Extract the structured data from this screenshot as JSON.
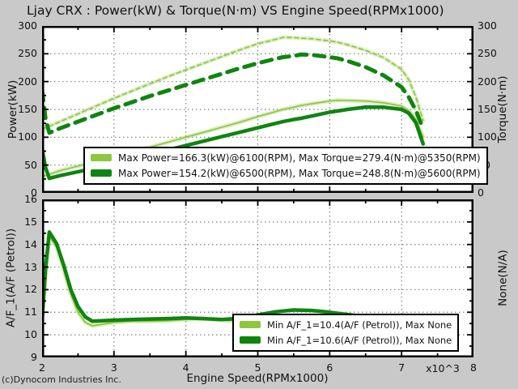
{
  "title": "Ljay CRX : Power(kW) & Torque(N·m) VS Engine Speed(RPMx1000)",
  "footer": "(c)Dynocom Industries Inc.",
  "colors": {
    "figure_bg": "#c9c9c9",
    "plot_bg": "#ffffff",
    "grid": "#7f7f7f",
    "axis": "#000000",
    "run1": "#8dc63f",
    "run2": "#108410"
  },
  "x_axis": {
    "label": "Engine Speed(RPMx1000)",
    "multiplier": "x10^3",
    "ticks": [
      2,
      3,
      4,
      5,
      6,
      7,
      8
    ]
  },
  "top_plot": {
    "y_left_label": "Power(kW)",
    "y_right_label": "Torque(N·m)",
    "legend": [
      {
        "swatch": "run1",
        "label": "Max Power=166.3(kW)@6100(RPM), Max Torque=279.4(N·m)@5350(RPM)"
      },
      {
        "swatch": "run2",
        "label": "Max Power=154.2(kW)@6500(RPM), Max Torque=248.8(N·m)@5600(RPM)"
      }
    ]
  },
  "bottom_plot": {
    "y_left_label": "A/F_1(A/F (Petrol))",
    "y_right_label": "None(N/A)",
    "legend": [
      {
        "swatch": "run1",
        "label": "Min A/F_1=10.4(A/F (Petrol)), Max None"
      },
      {
        "swatch": "run2",
        "label": "Min A/F_1=10.6(A/F (Petrol)), Max None"
      }
    ]
  },
  "chart_data": [
    {
      "type": "line",
      "title": "Power & Torque vs Engine Speed",
      "xlabel": "Engine Speed(RPMx1000)",
      "ylabel_left": "Power(kW)",
      "ylabel_right": "Torque(N·m)",
      "xlim": [
        2,
        8
      ],
      "ylim": [
        0,
        300
      ],
      "grid": true,
      "x_gridlines": [
        3,
        4,
        5,
        6,
        7
      ],
      "y_gridlines": [
        50,
        100,
        150,
        200,
        250
      ],
      "y_ticks_major": [
        0,
        50,
        100,
        150,
        200,
        250,
        300
      ],
      "x_minor_step": 0.5,
      "y_minor_step": 25,
      "y_major_step": 50,
      "legend_position": "lower-left",
      "series": [
        {
          "name": "run1-power-kW",
          "color_key": "run1",
          "line": {
            "width": 1.6,
            "dash": null,
            "halo": true
          },
          "x": [
            2.0,
            2.05,
            2.1,
            2.25,
            2.5,
            2.75,
            3.0,
            3.25,
            3.5,
            3.75,
            4.0,
            4.25,
            4.5,
            4.75,
            5.0,
            5.25,
            5.35,
            5.5,
            5.6,
            5.75,
            6.0,
            6.1,
            6.25,
            6.5,
            6.75,
            7.0,
            7.1,
            7.2,
            7.3
          ],
          "y": [
            30,
            31,
            33,
            40,
            48,
            57,
            66,
            74,
            82,
            91,
            100,
            109,
            118,
            127,
            137,
            146,
            150,
            154,
            157,
            160,
            165,
            166.3,
            166,
            165,
            162,
            156,
            148,
            132,
            100
          ]
        },
        {
          "name": "run1-torque-Nm",
          "color_key": "run1",
          "line": {
            "width": 1.6,
            "dash": [
              5,
              4
            ],
            "halo": true
          },
          "x": [
            2.0,
            2.05,
            2.1,
            2.25,
            2.5,
            2.75,
            3.0,
            3.25,
            3.5,
            3.75,
            4.0,
            4.25,
            4.5,
            4.75,
            5.0,
            5.25,
            5.35,
            5.5,
            5.6,
            5.75,
            6.0,
            6.1,
            6.25,
            6.5,
            6.75,
            7.0,
            7.1,
            7.2,
            7.3
          ],
          "y": [
            115,
            117,
            120,
            128,
            142,
            156,
            170,
            183,
            196,
            209,
            221,
            233,
            245,
            257,
            268,
            276,
            279.4,
            279,
            278,
            277,
            273,
            271,
            266,
            256,
            243,
            222,
            203,
            172,
            130
          ]
        },
        {
          "name": "run2-power-kW",
          "color_key": "run2",
          "line": {
            "width": 4.5,
            "dash": null,
            "halo": false
          },
          "x": [
            2.0,
            2.05,
            2.1,
            2.25,
            2.5,
            2.75,
            3.0,
            3.25,
            3.5,
            3.75,
            4.0,
            4.25,
            4.5,
            4.75,
            5.0,
            5.25,
            5.35,
            5.5,
            5.6,
            5.75,
            6.0,
            6.1,
            6.25,
            6.5,
            6.75,
            7.0,
            7.1,
            7.2,
            7.3
          ],
          "y": [
            80,
            45,
            26,
            31,
            38,
            45,
            53,
            61,
            69,
            77,
            85,
            93,
            101,
            109,
            117,
            125,
            128,
            132,
            134,
            138,
            145,
            147,
            150,
            154.2,
            154,
            150,
            143,
            126,
            88
          ]
        },
        {
          "name": "run2-torque-Nm",
          "color_key": "run2",
          "line": {
            "width": 5,
            "dash": [
              13,
              9
            ],
            "halo": false
          },
          "x": [
            2.0,
            2.05,
            2.1,
            2.25,
            2.5,
            2.75,
            3.0,
            3.25,
            3.5,
            3.75,
            4.0,
            4.25,
            4.5,
            4.75,
            5.0,
            5.25,
            5.35,
            5.5,
            5.6,
            5.75,
            6.0,
            6.1,
            6.25,
            6.5,
            6.75,
            7.0,
            7.1,
            7.2,
            7.3
          ],
          "y": [
            185,
            132,
            108,
            116,
            128,
            140,
            152,
            163,
            174,
            184,
            194,
            204,
            214,
            224,
            233,
            241,
            244,
            246,
            248.8,
            248,
            244,
            242,
            237,
            226,
            211,
            190,
            172,
            148,
            115
          ]
        }
      ]
    },
    {
      "type": "line",
      "title": "Air/Fuel Ratio vs Engine Speed",
      "xlabel": "Engine Speed(RPMx1000)",
      "ylabel_left": "A/F_1(A/F (Petrol))",
      "ylabel_right": "None(N/A)",
      "xlim": [
        2,
        8
      ],
      "ylim": [
        9,
        16
      ],
      "grid": true,
      "x_gridlines": [
        3,
        4,
        5,
        6,
        7
      ],
      "y_gridlines": [
        10,
        11,
        12,
        13,
        14,
        15
      ],
      "y_ticks_major": [
        9,
        10,
        11,
        12,
        13,
        14,
        15,
        16
      ],
      "x_minor_step": 0.5,
      "y_minor_step": 0.5,
      "y_major_step": 1,
      "legend_position": "lower-right",
      "series": [
        {
          "name": "run1-afr",
          "color_key": "run1",
          "line": {
            "width": 1.8,
            "dash": null,
            "halo": true
          },
          "x": [
            2.0,
            2.05,
            2.1,
            2.2,
            2.3,
            2.4,
            2.5,
            2.6,
            2.7,
            2.8,
            3.0,
            3.25,
            3.5,
            3.75,
            4.0,
            4.25,
            4.5,
            4.75,
            5.0,
            5.25,
            5.5,
            5.75,
            6.0,
            6.25,
            6.5,
            6.75,
            7.0,
            7.15,
            7.3
          ],
          "y": [
            10.9,
            12.6,
            14.35,
            13.9,
            12.9,
            11.8,
            11.0,
            10.55,
            10.4,
            10.45,
            10.55,
            10.6,
            10.6,
            10.62,
            10.68,
            10.7,
            10.65,
            10.6,
            10.67,
            10.78,
            10.85,
            10.85,
            10.78,
            10.68,
            10.6,
            10.57,
            10.57,
            10.58,
            10.6
          ]
        },
        {
          "name": "run2-afr",
          "color_key": "run2",
          "line": {
            "width": 4.5,
            "dash": null,
            "halo": false
          },
          "x": [
            2.0,
            2.05,
            2.1,
            2.2,
            2.3,
            2.4,
            2.5,
            2.6,
            2.7,
            2.8,
            3.0,
            3.25,
            3.5,
            3.75,
            4.0,
            4.25,
            4.5,
            4.75,
            5.0,
            5.25,
            5.5,
            5.75,
            6.0,
            6.25,
            6.5
          ],
          "y": [
            10.6,
            13.0,
            14.55,
            14.05,
            13.1,
            12.0,
            11.25,
            10.8,
            10.6,
            10.62,
            10.65,
            10.68,
            10.7,
            10.72,
            10.75,
            10.72,
            10.68,
            10.73,
            10.88,
            11.02,
            11.1,
            11.08,
            11.0,
            10.9,
            10.8
          ]
        }
      ]
    }
  ]
}
